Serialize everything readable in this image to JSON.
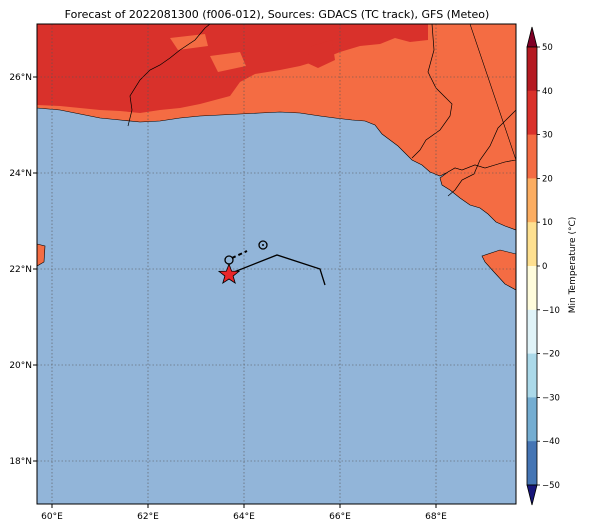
{
  "title": "Forecast of 2022081300 (f006-012), Sources: GDACS (TC track), GFS (Meteo)",
  "map": {
    "lon_range": [
      59.6,
      69.6
    ],
    "lat_range": [
      17.1,
      27.1
    ],
    "x_ticks": [
      "60°E",
      "62°E",
      "64°E",
      "66°E",
      "68°E"
    ],
    "y_ticks": [
      "18°N",
      "20°N",
      "22°N",
      "24°N",
      "26°N"
    ],
    "ocean_color": "#92b5d9",
    "track": {
      "past_marker_lonlat": [
        63.7,
        21.9
      ],
      "past_marker": "red-star",
      "forecast_points_lonlat": [
        [
          63.7,
          22.2
        ],
        [
          64.4,
          22.5
        ]
      ],
      "path_lonlat": [
        [
          63.7,
          21.9
        ],
        [
          64.7,
          22.3
        ],
        [
          65.6,
          22.0
        ],
        [
          65.7,
          21.7
        ]
      ]
    }
  },
  "colorbar": {
    "label": "Min Temperature (°C)",
    "ticks": [
      "50",
      "40",
      "30",
      "20",
      "10",
      "0",
      "−10",
      "−20",
      "−30",
      "−40",
      "−50"
    ],
    "colors": [
      "#7f0026",
      "#b51a22",
      "#d9312b",
      "#f46c43",
      "#fcad61",
      "#fee090",
      "#fffcdc",
      "#e0f3f8",
      "#abd9e9",
      "#74add1",
      "#4575b4",
      "#313695",
      "#17167a"
    ]
  }
}
